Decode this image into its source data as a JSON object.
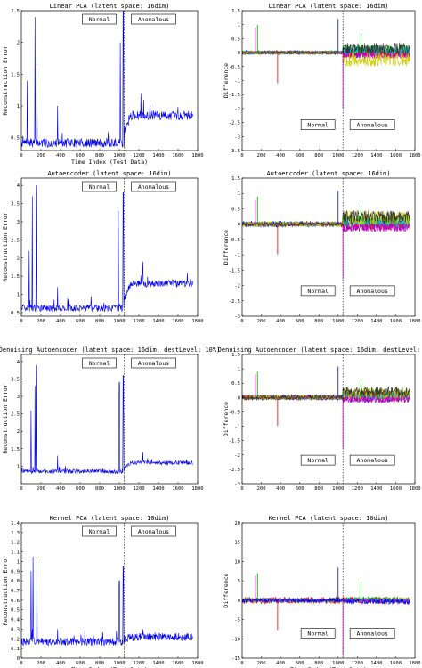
{
  "chart_data": [
    {
      "type": "line",
      "title": "Linear PCA (latent space: 16dim)",
      "xlabel": "Time Index (Test Data)",
      "ylabel": "Reconstruction Error",
      "xlim": [
        0,
        1800
      ],
      "ylim": [
        0.3,
        2.5
      ],
      "xticks": [
        0,
        200,
        400,
        600,
        800,
        1000,
        1200,
        1400,
        1600,
        1800
      ],
      "yticks": [
        0.5,
        1,
        1.5,
        2,
        2.5
      ],
      "divider_x": 1050,
      "normal_label": "Normal",
      "anomalous_label": "Anomalous",
      "series": [
        {
          "color": "#0000ee",
          "baseline_normal": 0.42,
          "baseline_anomalous": 0.85,
          "noise": 0.07,
          "spikes": [
            {
              "x": 60,
              "y": 1.4
            },
            {
              "x": 140,
              "y": 2.4
            },
            {
              "x": 160,
              "y": 1.6
            },
            {
              "x": 370,
              "y": 1.0
            },
            {
              "x": 1010,
              "y": 2.0
            },
            {
              "x": 1040,
              "y": 2.5
            },
            {
              "x": 1220,
              "y": 1.2
            },
            {
              "x": 1250,
              "y": 1.1
            }
          ]
        }
      ]
    },
    {
      "type": "line",
      "title": "Linear PCA (latent space: 16dim)",
      "xlabel": "",
      "ylabel": "Difference",
      "xlim": [
        0,
        1800
      ],
      "ylim": [
        -3.5,
        1.5
      ],
      "xticks": [
        0,
        200,
        400,
        600,
        800,
        1000,
        1200,
        1400,
        1600,
        1800
      ],
      "yticks": [
        -3.5,
        -3,
        -2.5,
        -2,
        -1.5,
        -1,
        -0.5,
        0,
        0.5,
        1,
        1.5
      ],
      "divider_x": 1050,
      "normal_label": "Normal",
      "anomalous_label": "Anomalous",
      "series": [
        {
          "color": "#0000ee",
          "spread_normal": 0.08,
          "spread_anomalous": 0.2,
          "offset_anomalous": 0.0
        },
        {
          "color": "#00aa00",
          "spread_normal": 0.07,
          "spread_anomalous": 0.2,
          "offset_anomalous": 0.1
        },
        {
          "color": "#ee0000",
          "spread_normal": 0.06,
          "spread_anomalous": 0.15,
          "offset_anomalous": -0.05
        },
        {
          "color": "#00cccc",
          "spread_normal": 0.06,
          "spread_anomalous": 0.18,
          "offset_anomalous": 0.05
        },
        {
          "color": "#cc00cc",
          "spread_normal": 0.05,
          "spread_anomalous": 0.12,
          "offset_anomalous": -0.1
        },
        {
          "color": "#cccc00",
          "spread_normal": 0.06,
          "spread_anomalous": 0.25,
          "offset_anomalous": -0.25
        },
        {
          "color": "#333333",
          "spread_normal": 0.05,
          "spread_anomalous": 0.2,
          "offset_anomalous": 0.15
        }
      ]
    },
    {
      "type": "line",
      "title": "Autoencoder (latent space: 16dim)",
      "xlabel": "",
      "ylabel": "Reconstruction Error",
      "xlim": [
        0,
        1800
      ],
      "ylim": [
        0.4,
        4.2
      ],
      "xticks": [
        0,
        200,
        400,
        600,
        800,
        1000,
        1200,
        1400,
        1600,
        1800
      ],
      "yticks": [
        0.5,
        1,
        1.5,
        2,
        2.5,
        3,
        3.5,
        4
      ],
      "divider_x": 1050,
      "normal_label": "Normal",
      "anomalous_label": "Anomalous",
      "series": [
        {
          "color": "#0000ee",
          "baseline_normal": 0.62,
          "baseline_anomalous": 1.3,
          "noise": 0.1,
          "spikes": [
            {
              "x": 80,
              "y": 2.2
            },
            {
              "x": 110,
              "y": 3.7
            },
            {
              "x": 150,
              "y": 4.0
            },
            {
              "x": 370,
              "y": 1.2
            },
            {
              "x": 990,
              "y": 3.3
            },
            {
              "x": 1040,
              "y": 3.8
            },
            {
              "x": 1240,
              "y": 1.9
            }
          ]
        }
      ]
    },
    {
      "type": "line",
      "title": "Autoencoder (latent space: 16dim)",
      "xlabel": "",
      "ylabel": "Difference",
      "xlim": [
        0,
        1800
      ],
      "ylim": [
        -3,
        1.5
      ],
      "xticks": [
        0,
        200,
        400,
        600,
        800,
        1000,
        1200,
        1400,
        1600,
        1800
      ],
      "yticks": [
        -3,
        -2.5,
        -2,
        -1.5,
        -1,
        -0.5,
        0,
        0.5,
        1,
        1.5
      ],
      "divider_x": 1050,
      "normal_label": "Normal",
      "anomalous_label": "Anomalous",
      "series": [
        {
          "color": "#0000ee",
          "spread_normal": 0.1,
          "spread_anomalous": 0.2,
          "offset_anomalous": 0.0
        },
        {
          "color": "#00aa00",
          "spread_normal": 0.08,
          "spread_anomalous": 0.22,
          "offset_anomalous": 0.1
        },
        {
          "color": "#ee0000",
          "spread_normal": 0.07,
          "spread_anomalous": 0.15,
          "offset_anomalous": -0.05
        },
        {
          "color": "#00cccc",
          "spread_normal": 0.06,
          "spread_anomalous": 0.18,
          "offset_anomalous": 0.05
        },
        {
          "color": "#cc00cc",
          "spread_normal": 0.06,
          "spread_anomalous": 0.15,
          "offset_anomalous": -0.1
        },
        {
          "color": "#cccc00",
          "spread_normal": 0.09,
          "spread_anomalous": 0.25,
          "offset_anomalous": 0.2
        },
        {
          "color": "#333333",
          "spread_normal": 0.06,
          "spread_anomalous": 0.2,
          "offset_anomalous": 0.25
        }
      ]
    },
    {
      "type": "line",
      "title": "Denoising Autoencoder (latent space: 16dim, destLevel: 10%)",
      "xlabel": "",
      "ylabel": "Reconstruction Error",
      "xlim": [
        0,
        1800
      ],
      "ylim": [
        0.5,
        4.2
      ],
      "xticks": [
        0,
        200,
        400,
        600,
        800,
        1000,
        1200,
        1400,
        1600,
        1800
      ],
      "yticks": [
        1,
        1.5,
        2,
        2.5,
        3,
        3.5,
        4
      ],
      "divider_x": 1050,
      "normal_label": "Normal",
      "anomalous_label": "Anomalous",
      "series": [
        {
          "color": "#0000ee",
          "baseline_normal": 0.85,
          "baseline_anomalous": 1.1,
          "noise": 0.06,
          "spikes": [
            {
              "x": 100,
              "y": 2.6
            },
            {
              "x": 140,
              "y": 3.3
            },
            {
              "x": 150,
              "y": 3.9
            },
            {
              "x": 370,
              "y": 1.3
            },
            {
              "x": 1000,
              "y": 3.4
            },
            {
              "x": 1040,
              "y": 3.6
            },
            {
              "x": 1240,
              "y": 1.4
            }
          ]
        }
      ]
    },
    {
      "type": "line",
      "title": "Denoising Autoencoder (latent space: 16dim, destLevel: 10%)",
      "xlabel": "",
      "ylabel": "Difference",
      "xlim": [
        0,
        1800
      ],
      "ylim": [
        -3,
        1.5
      ],
      "xticks": [
        0,
        200,
        400,
        600,
        800,
        1000,
        1200,
        1400,
        1600,
        1800
      ],
      "yticks": [
        -3,
        -2.5,
        -2,
        -1.5,
        -1,
        -0.5,
        0,
        0.5,
        1,
        1.5
      ],
      "divider_x": 1050,
      "normal_label": "Normal",
      "anomalous_label": "Anomalous",
      "series": [
        {
          "color": "#0000ee",
          "spread_normal": 0.1,
          "spread_anomalous": 0.18,
          "offset_anomalous": 0.0
        },
        {
          "color": "#00aa00",
          "spread_normal": 0.08,
          "spread_anomalous": 0.2,
          "offset_anomalous": 0.1
        },
        {
          "color": "#ee0000",
          "spread_normal": 0.08,
          "spread_anomalous": 0.2,
          "offset_anomalous": 0.05
        },
        {
          "color": "#00cccc",
          "spread_normal": 0.06,
          "spread_anomalous": 0.15,
          "offset_anomalous": 0.05
        },
        {
          "color": "#cc00cc",
          "spread_normal": 0.06,
          "spread_anomalous": 0.15,
          "offset_anomalous": -0.05
        },
        {
          "color": "#cccc00",
          "spread_normal": 0.08,
          "spread_anomalous": 0.2,
          "offset_anomalous": 0.15
        },
        {
          "color": "#333333",
          "spread_normal": 0.06,
          "spread_anomalous": 0.18,
          "offset_anomalous": 0.2
        }
      ]
    },
    {
      "type": "line",
      "title": "Kernel PCA (latent space: 10dim)",
      "xlabel": "Time Index (Test Data)",
      "ylabel": "Reconstruction Error",
      "xlim": [
        0,
        1800
      ],
      "ylim": [
        0,
        1.4
      ],
      "xticks": [
        0,
        200,
        400,
        600,
        800,
        1000,
        1200,
        1400,
        1600,
        1800
      ],
      "yticks": [
        0,
        0.1,
        0.2,
        0.3,
        0.4,
        0.5,
        0.6,
        0.7,
        0.8,
        0.9,
        1,
        1.1,
        1.2,
        1.3,
        1.4
      ],
      "divider_x": 1050,
      "normal_label": "Normal",
      "anomalous_label": "Anomalous",
      "series": [
        {
          "color": "#0000ee",
          "baseline_normal": 0.17,
          "baseline_anomalous": 0.22,
          "noise": 0.04,
          "spikes": [
            {
              "x": 100,
              "y": 0.9
            },
            {
              "x": 120,
              "y": 1.05
            },
            {
              "x": 160,
              "y": 1.05
            },
            {
              "x": 370,
              "y": 0.3
            },
            {
              "x": 1000,
              "y": 0.8
            },
            {
              "x": 1040,
              "y": 0.95
            },
            {
              "x": 1240,
              "y": 0.3
            }
          ]
        }
      ]
    },
    {
      "type": "line",
      "title": "Kernel PCA (latent space: 10dim)",
      "xlabel": "Time Index (Test Data)",
      "ylabel": "Difference",
      "xlim": [
        0,
        1800
      ],
      "ylim": [
        -15,
        20
      ],
      "xticks": [
        0,
        200,
        400,
        600,
        800,
        1000,
        1200,
        1400,
        1600,
        1800
      ],
      "yticks": [
        -15,
        -10,
        -5,
        0,
        5,
        10,
        15,
        20
      ],
      "divider_x": 1050,
      "normal_label": "Normal",
      "anomalous_label": "Anomalous",
      "series": [
        {
          "color": "#ee0000",
          "spread_normal": 0.9,
          "spread_anomalous": 0.9,
          "offset_anomalous": 0.0
        },
        {
          "color": "#00aa00",
          "spread_normal": 0.6,
          "spread_anomalous": 0.7,
          "offset_anomalous": 0.2
        },
        {
          "color": "#cccc00",
          "spread_normal": 0.5,
          "spread_anomalous": 0.6,
          "offset_anomalous": 0.1
        },
        {
          "color": "#00cccc",
          "spread_normal": 0.5,
          "spread_anomalous": 0.6,
          "offset_anomalous": 0.0
        },
        {
          "color": "#cc00cc",
          "spread_normal": 0.4,
          "spread_anomalous": 0.5,
          "offset_anomalous": -0.1
        },
        {
          "color": "#0000ee",
          "spread_normal": 0.6,
          "spread_anomalous": 0.8,
          "offset_anomalous": -0.3
        }
      ]
    }
  ]
}
